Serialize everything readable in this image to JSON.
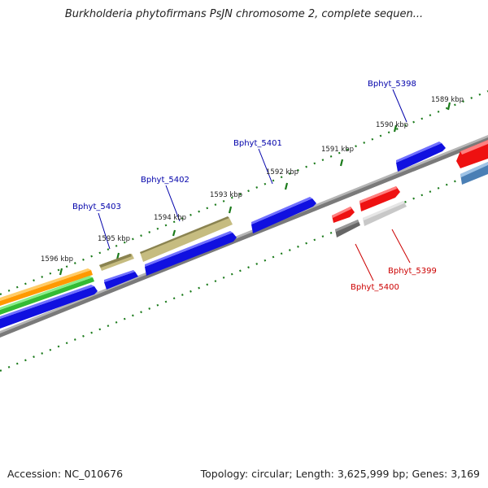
{
  "title": "Burkholderia phytofirmans PsJN chromosome 2, complete sequen...",
  "footer": {
    "accession": "Accession: NC_010676",
    "summary": "Topology: circular; Length: 3,625,999 bp; Genes: 3,169"
  },
  "ticks": [
    "1589 kbp",
    "1590 kbp",
    "1591 kbp",
    "1592 kbp",
    "1593 kbp",
    "1594 kbp",
    "1595 kbp",
    "1596 kbp"
  ],
  "genes": [
    {
      "label": "Bphyt_5398",
      "color": "#0000aa"
    },
    {
      "label": "Bphyt_5401",
      "color": "#0000aa"
    },
    {
      "label": "Bphyt_5402",
      "color": "#0000aa"
    },
    {
      "label": "Bphyt_5403",
      "color": "#0000aa"
    },
    {
      "label": "Bphyt_5399",
      "color": "#cc0000"
    },
    {
      "label": "Bphyt_5400",
      "color": "#cc0000"
    }
  ],
  "colors": {
    "forward_gene": "#1010e0",
    "reverse_gene": "#ee1111",
    "olive_gene": "#b5ac70",
    "grey_gene": "#666666",
    "light_grey_gene": "#c8c8c8",
    "steel_gene": "#4a7fb5",
    "orange_gene": "#ff9900",
    "green_gene": "#33cc33",
    "backbone": "#888888",
    "tick": "#1a7a1a"
  }
}
